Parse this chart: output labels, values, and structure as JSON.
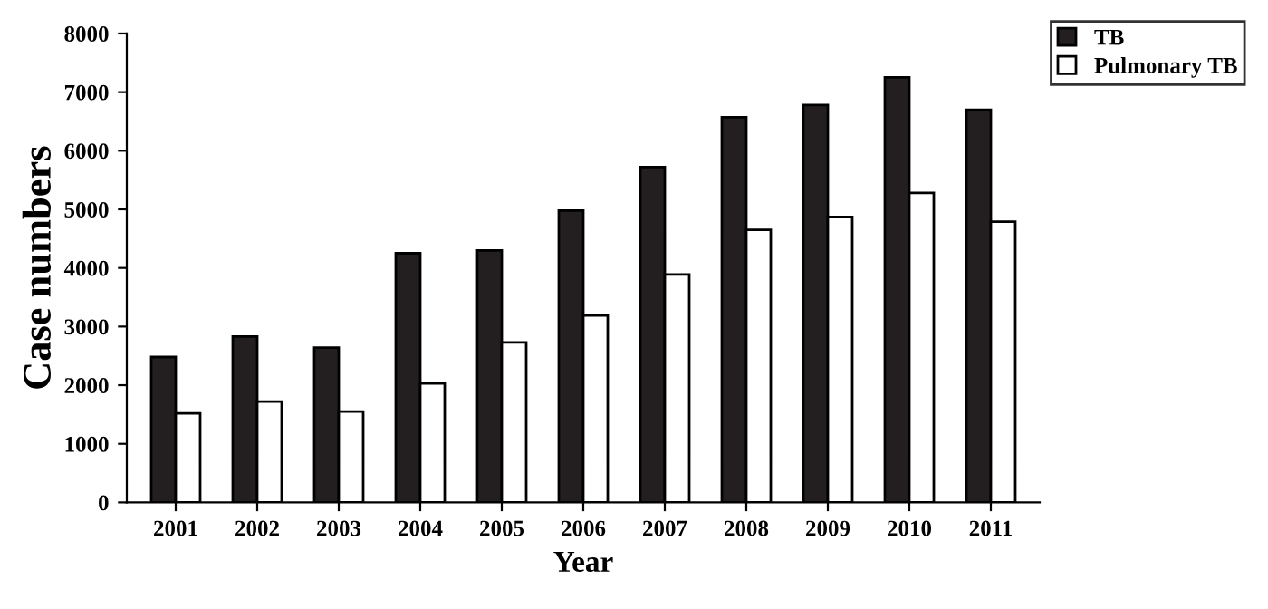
{
  "chart_data": {
    "type": "bar",
    "xlabel": "Year",
    "ylabel": "Case numbers",
    "categories": [
      "2001",
      "2002",
      "2003",
      "2004",
      "2005",
      "2006",
      "2007",
      "2008",
      "2009",
      "2010",
      "2011"
    ],
    "series": [
      {
        "name": "TB",
        "color": "#231f20",
        "values": [
          2480,
          2830,
          2640,
          4250,
          4300,
          4980,
          5720,
          6570,
          6780,
          7250,
          6700
        ]
      },
      {
        "name": "Pulmonary TB",
        "color": "#ffffff",
        "values": [
          1520,
          1720,
          1550,
          2030,
          2730,
          3190,
          3890,
          4650,
          4870,
          5280,
          4790
        ]
      }
    ],
    "ylim": [
      0,
      8000
    ],
    "yticks": [
      0,
      1000,
      2000,
      3000,
      4000,
      5000,
      6000,
      7000,
      8000
    ],
    "grid": false,
    "legend": "top right"
  }
}
